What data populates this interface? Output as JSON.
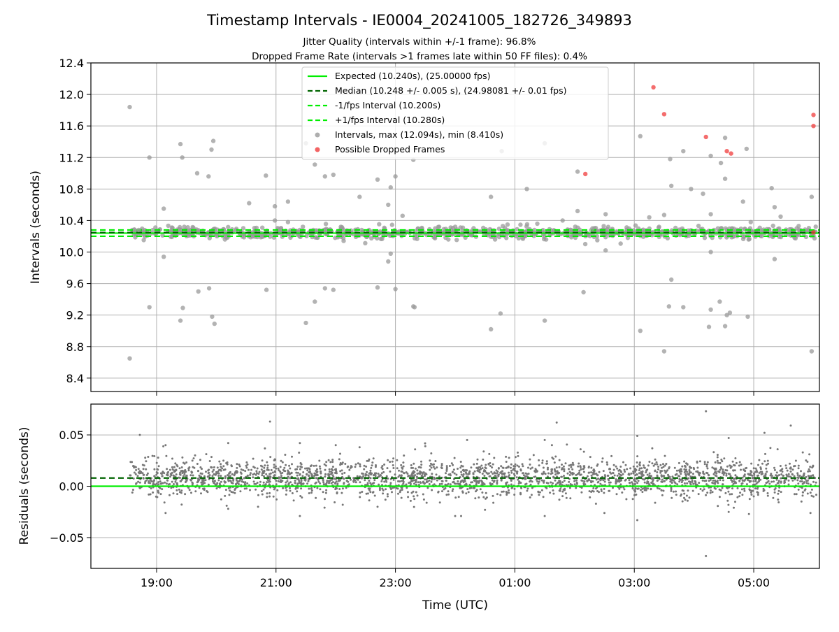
{
  "figure": {
    "title": "Timestamp Intervals - IE0004_20241005_182726_349893",
    "subtitle_1": "Jitter Quality (intervals within +/-1 frame): 96.8%",
    "subtitle_2": "Dropped Frame Rate (intervals >1 frames late within 50 FF files): 0.4%",
    "xlabel": "Time (UTC)"
  },
  "chart_data": [
    {
      "type": "scatter",
      "panel": "intervals",
      "ylabel": "Intervals (seconds)",
      "xlim": [
        17.9,
        30.1
      ],
      "ylim": [
        8.23,
        12.4
      ],
      "x_ticks": [
        19,
        21,
        23,
        25,
        27,
        29
      ],
      "x_tick_labels": [
        "19:00",
        "21:00",
        "23:00",
        "01:00",
        "03:00",
        "05:00"
      ],
      "y_ticks": [
        8.4,
        8.8,
        9.2,
        9.6,
        10.0,
        10.4,
        10.8,
        11.2,
        11.6,
        12.0,
        12.4
      ],
      "y_tick_labels": [
        "8.4",
        "8.8",
        "9.2",
        "9.6",
        "10.0",
        "10.4",
        "10.8",
        "11.2",
        "11.6",
        "12.0",
        "12.4"
      ],
      "grid": true,
      "legend_position": "top-center",
      "x_unit": "hours since 00:00 UTC of 2024-10-05",
      "reference_lines": [
        {
          "name": "Expected (10.240s), (25.00000 fps)",
          "value": 10.24,
          "color": "#00ee00",
          "style": "solid"
        },
        {
          "name": "Median (10.248 +/- 0.005 s), (24.98081 +/- 0.01 fps)",
          "value": 10.248,
          "color": "#006400",
          "style": "dashed"
        },
        {
          "name": "-1/fps Interval (10.200s)",
          "value": 10.2,
          "color": "#00ee00",
          "style": "dashed"
        },
        {
          "name": "+1/fps Interval (10.280s)",
          "value": 10.28,
          "color": "#00ee00",
          "style": "dashed"
        }
      ],
      "series": [
        {
          "name": "Intervals, max (12.094s), min (8.410s)",
          "color": "#9a9a9a",
          "band": {
            "x_from": 18.55,
            "x_to": 30.05,
            "y_center": 10.248,
            "y_spread": 0.035
          },
          "points": [
            [
              18.55,
              11.84
            ],
            [
              18.55,
              8.65
            ],
            [
              18.7,
              10.28
            ],
            [
              18.88,
              11.2
            ],
            [
              18.88,
              9.3
            ],
            [
              19.12,
              10.55
            ],
            [
              19.12,
              9.94
            ],
            [
              19.4,
              11.37
            ],
            [
              19.43,
              11.2
            ],
            [
              19.4,
              9.13
            ],
            [
              19.44,
              9.29
            ],
            [
              19.68,
              11.0
            ],
            [
              19.7,
              9.5
            ],
            [
              19.87,
              10.96
            ],
            [
              19.92,
              11.3
            ],
            [
              19.95,
              11.41
            ],
            [
              19.88,
              9.54
            ],
            [
              19.93,
              9.18
            ],
            [
              19.97,
              9.09
            ],
            [
              20.55,
              10.62
            ],
            [
              20.83,
              10.97
            ],
            [
              20.84,
              9.52
            ],
            [
              20.98,
              10.58
            ],
            [
              20.98,
              10.4
            ],
            [
              21.2,
              10.64
            ],
            [
              21.2,
              10.38
            ],
            [
              21.45,
              10.32
            ],
            [
              21.5,
              11.38
            ],
            [
              21.5,
              9.1
            ],
            [
              21.65,
              11.11
            ],
            [
              21.65,
              9.37
            ],
            [
              21.82,
              10.96
            ],
            [
              21.82,
              9.54
            ],
            [
              21.96,
              10.98
            ],
            [
              21.96,
              9.52
            ],
            [
              22.4,
              10.7
            ],
            [
              22.7,
              10.92
            ],
            [
              22.7,
              9.55
            ],
            [
              22.88,
              10.6
            ],
            [
              22.88,
              9.88
            ],
            [
              22.92,
              10.82
            ],
            [
              22.92,
              9.98
            ],
            [
              23.0,
              10.96
            ],
            [
              23.0,
              9.53
            ],
            [
              23.12,
              10.46
            ],
            [
              23.3,
              11.17
            ],
            [
              23.3,
              9.31
            ],
            [
              23.32,
              9.3
            ],
            [
              24.6,
              10.7
            ],
            [
              24.6,
              9.02
            ],
            [
              24.76,
              9.22
            ],
            [
              24.78,
              11.28
            ],
            [
              25.2,
              10.8
            ],
            [
              25.5,
              11.38
            ],
            [
              25.5,
              9.13
            ],
            [
              25.8,
              10.4
            ],
            [
              26.05,
              11.02
            ],
            [
              26.05,
              10.52
            ],
            [
              26.15,
              9.49
            ],
            [
              26.3,
              10.3
            ],
            [
              26.38,
              10.15
            ],
            [
              26.52,
              10.48
            ],
            [
              26.52,
              10.02
            ],
            [
              27.1,
              11.47
            ],
            [
              27.1,
              9.0
            ],
            [
              27.25,
              10.44
            ],
            [
              27.5,
              10.47
            ],
            [
              27.5,
              8.74
            ],
            [
              27.6,
              11.18
            ],
            [
              27.62,
              10.84
            ],
            [
              27.62,
              9.65
            ],
            [
              27.58,
              9.31
            ],
            [
              27.82,
              11.28
            ],
            [
              27.82,
              9.3
            ],
            [
              27.95,
              10.8
            ],
            [
              28.15,
              10.74
            ],
            [
              28.18,
              10.18
            ],
            [
              28.28,
              11.22
            ],
            [
              28.28,
              10.48
            ],
            [
              28.28,
              10.0
            ],
            [
              28.25,
              9.05
            ],
            [
              28.28,
              9.27
            ],
            [
              28.4,
              10.3
            ],
            [
              28.45,
              11.13
            ],
            [
              28.43,
              9.37
            ],
            [
              28.52,
              11.45
            ],
            [
              28.52,
              10.93
            ],
            [
              28.52,
              9.06
            ],
            [
              28.55,
              9.2
            ],
            [
              28.6,
              9.23
            ],
            [
              28.82,
              10.64
            ],
            [
              28.88,
              11.31
            ],
            [
              28.9,
              9.18
            ],
            [
              28.95,
              10.38
            ],
            [
              29.3,
              10.81
            ],
            [
              29.35,
              10.57
            ],
            [
              29.35,
              9.91
            ],
            [
              29.45,
              10.45
            ],
            [
              29.72,
              10.3
            ],
            [
              29.97,
              10.7
            ],
            [
              29.97,
              8.74
            ]
          ]
        },
        {
          "name": "Possible Dropped Frames",
          "color": "#f03c3c",
          "points": [
            [
              27.32,
              12.09
            ],
            [
              27.5,
              11.75
            ],
            [
              28.2,
              11.46
            ],
            [
              28.55,
              11.28
            ],
            [
              28.62,
              11.25
            ],
            [
              26.18,
              10.99
            ],
            [
              30.0,
              11.74
            ],
            [
              30.0,
              11.6
            ],
            [
              30.0,
              10.25
            ]
          ]
        }
      ]
    },
    {
      "type": "scatter",
      "panel": "residuals",
      "ylabel": "Residuals (seconds)",
      "xlabel": "Time (UTC)",
      "xlim": [
        17.9,
        30.1
      ],
      "ylim": [
        -0.08,
        0.08
      ],
      "y_ticks": [
        0.05,
        0.0,
        -0.05
      ],
      "y_tick_labels": [
        "0.05",
        "0.00",
        "−0.05"
      ],
      "x_ticks": [
        19,
        21,
        23,
        25,
        27,
        29
      ],
      "x_tick_labels": [
        "19:00",
        "21:00",
        "23:00",
        "01:00",
        "03:00",
        "05:00"
      ],
      "grid": true,
      "x_unit": "hours since 00:00 UTC of 2024-10-05",
      "reference_lines": [
        {
          "name": "expected",
          "value": 0.0,
          "color": "#00ee00",
          "style": "solid"
        },
        {
          "name": "median",
          "value": 0.008,
          "color": "#006400",
          "style": "dashed"
        }
      ],
      "series": [
        {
          "name": "residuals",
          "color": "#777777",
          "band": {
            "x_from": 18.55,
            "x_to": 30.05,
            "y_center": 0.008,
            "y_spread": 0.009
          },
          "points": [
            [
              18.72,
              0.05
            ],
            [
              20.9,
              0.063
            ],
            [
              25.7,
              0.062
            ],
            [
              28.2,
              0.073
            ],
            [
              28.2,
              -0.068
            ],
            [
              29.62,
              0.059
            ],
            [
              29.18,
              0.052
            ],
            [
              27.05,
              0.049
            ],
            [
              26.5,
              -0.026
            ],
            [
              27.05,
              -0.033
            ],
            [
              28.58,
              0.047
            ],
            [
              28.58,
              -0.025
            ],
            [
              29.95,
              -0.026
            ],
            [
              19.15,
              0.04
            ],
            [
              20.2,
              0.042
            ],
            [
              21.4,
              0.042
            ],
            [
              21.4,
              -0.029
            ],
            [
              23.5,
              0.039
            ],
            [
              24.2,
              0.045
            ],
            [
              25.5,
              0.045
            ],
            [
              25.5,
              -0.029
            ],
            [
              25.62,
              0.04
            ],
            [
              22.0,
              0.04
            ],
            [
              19.15,
              -0.026
            ],
            [
              20.2,
              -0.022
            ],
            [
              20.7,
              -0.02
            ],
            [
              22.7,
              -0.02
            ],
            [
              24.0,
              -0.029
            ],
            [
              24.1,
              -0.029
            ],
            [
              24.5,
              -0.023
            ],
            [
              27.3,
              0.037
            ],
            [
              27.35,
              0.026
            ],
            [
              28.92,
              -0.027
            ],
            [
              29.4,
              0.036
            ],
            [
              30.0,
              -0.01
            ],
            [
              22.4,
              0.038
            ],
            [
              23.6,
              0.032
            ],
            [
              26.1,
              0.036
            ]
          ]
        }
      ]
    }
  ]
}
